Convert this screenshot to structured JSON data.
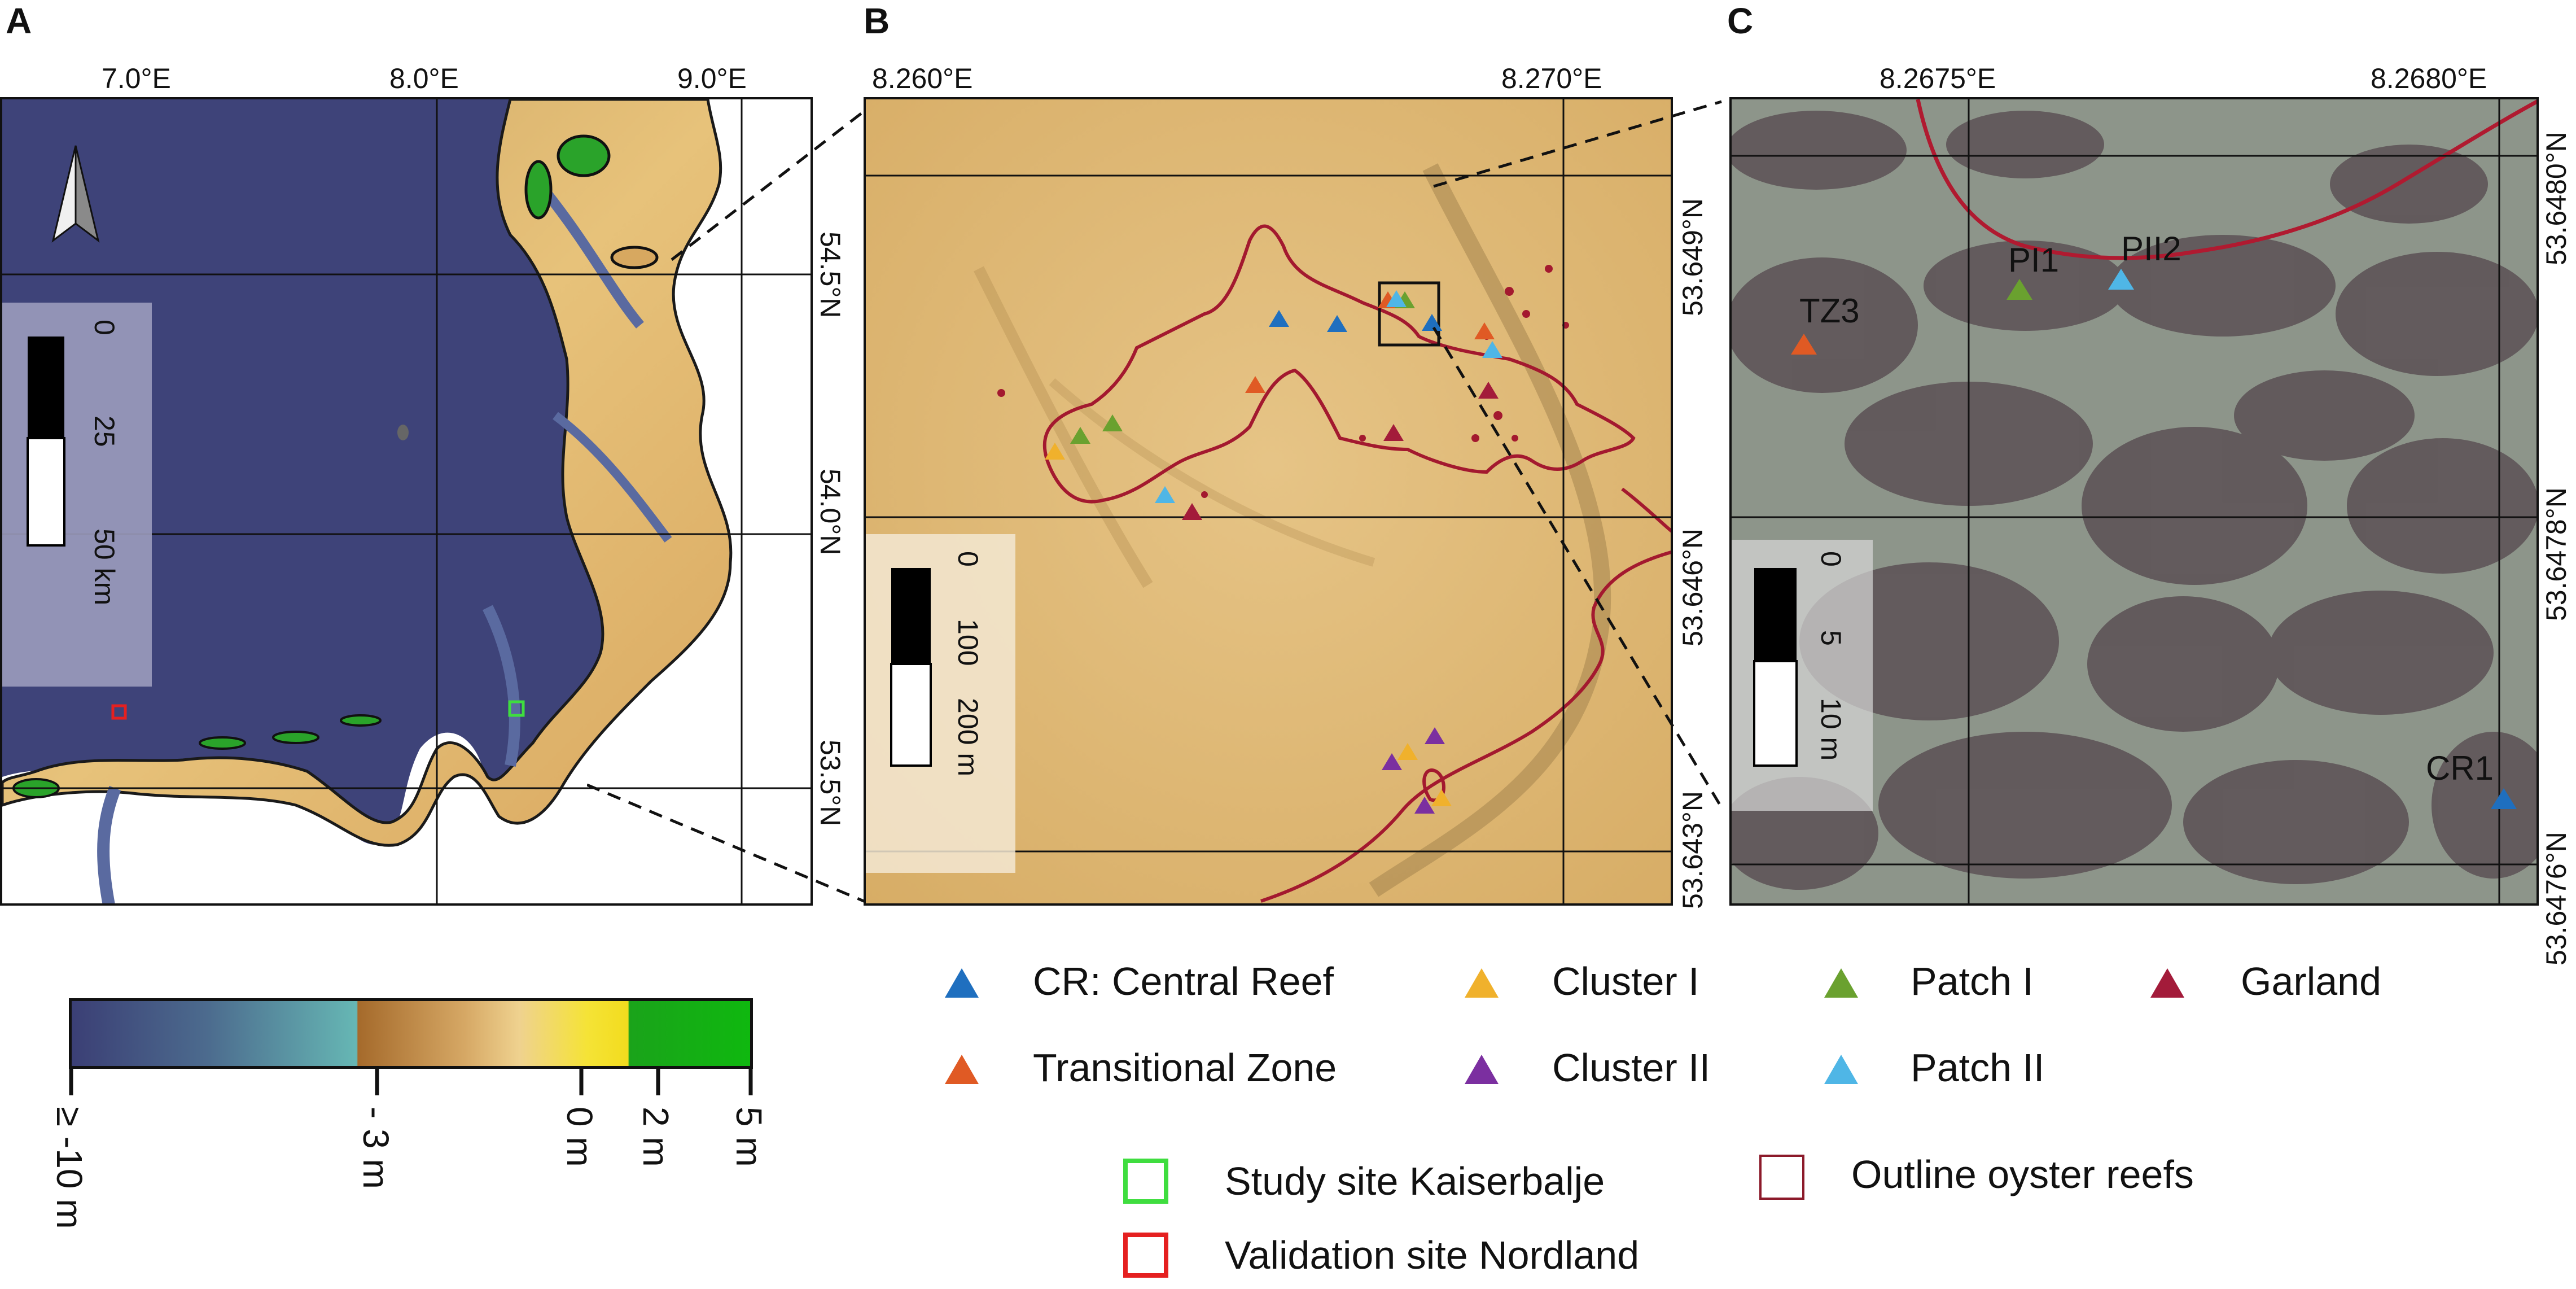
{
  "panels": {
    "a": {
      "letter": "A",
      "lon_ticks": [
        "7.0°E",
        "8.0°E",
        "9.0°E"
      ],
      "lat_ticks": [
        "54.5°N",
        "54.0°N",
        "53.5°N"
      ],
      "scale": {
        "t0": "0",
        "t1": "25",
        "t2": "50 km"
      }
    },
    "b": {
      "letter": "B",
      "lon_ticks": [
        "8.260°E",
        "8.270°E"
      ],
      "lat_ticks": [
        "53.649°N",
        "53.646°N",
        "53.643°N"
      ],
      "scale": {
        "t0": "0",
        "t1": "100",
        "t2": "200 m"
      }
    },
    "c": {
      "letter": "C",
      "lon_ticks": [
        "8.2675°E",
        "8.2680°E"
      ],
      "lat_ticks": [
        "53.6480°N",
        "53.6478°N",
        "53.6476°N"
      ],
      "scale": {
        "t0": "0",
        "t1": "5",
        "t2": "10 m"
      },
      "point_labels": [
        "TZ3",
        "PI1",
        "PII2",
        "CR1"
      ]
    }
  },
  "colorbar": {
    "gradient_colors": [
      "#3b3f75",
      "#66b7b4",
      "#a56a2b",
      "#e8c68c",
      "#f2dc1e",
      "#1aa31a"
    ],
    "ticks": [
      "≥ -10 m",
      "- 3 m",
      "0 m",
      "2 m",
      "5 m"
    ]
  },
  "legend": {
    "markers": [
      {
        "label": "CR: Central Reef",
        "color": "#1f6fbf"
      },
      {
        "label": "Cluster I",
        "color": "#f0b12c"
      },
      {
        "label": "Patch I",
        "color": "#6aa12f"
      },
      {
        "label": "Garland",
        "color": "#a31b3a"
      },
      {
        "label": "Transitional Zone",
        "color": "#e05a24"
      },
      {
        "label": "Cluster II",
        "color": "#7b2fa0"
      },
      {
        "label": "Patch II",
        "color": "#4fb6e6"
      }
    ],
    "study_site": {
      "label": "Study site Kaiserbalje",
      "color": "#3fdd3f"
    },
    "validation_site": {
      "label": "Validation site Nordland",
      "color": "#e52020"
    },
    "outline": {
      "label": "Outline oyster reefs",
      "color": "#8c1a2a"
    }
  }
}
